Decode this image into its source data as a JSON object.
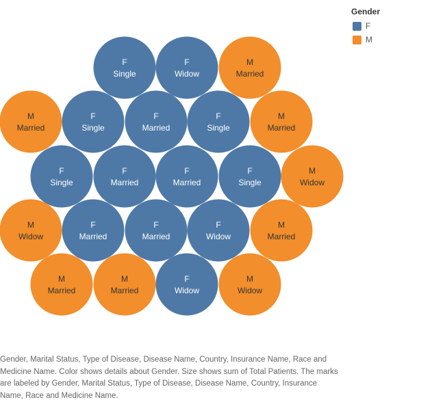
{
  "legend": {
    "title": "Gender",
    "items": [
      {
        "label": "F",
        "color": "#4E79A7"
      },
      {
        "label": "M",
        "color": "#F28E2B"
      }
    ]
  },
  "caption": "Gender, Marital Status, Type of Disease, Disease Name, Country, Insurance Name, Race and Medicine Name.  Color shows details about Gender.  Size shows sum of Total Patients.  The marks are labeled by Gender, Marital Status, Type of Disease, Disease Name, Country, Insurance Name, Race and Medicine Name.",
  "chart_data": {
    "type": "packed-bubble",
    "title": "",
    "color_field": "Gender",
    "size_field": "sum of Total Patients",
    "bubbles": [
      {
        "gender": "F",
        "status": "Single"
      },
      {
        "gender": "F",
        "status": "Widow"
      },
      {
        "gender": "M",
        "status": "Married"
      },
      {
        "gender": "M",
        "status": "Married"
      },
      {
        "gender": "F",
        "status": "Single"
      },
      {
        "gender": "F",
        "status": "Married"
      },
      {
        "gender": "F",
        "status": "Single"
      },
      {
        "gender": "M",
        "status": "Married"
      },
      {
        "gender": "F",
        "status": "Single"
      },
      {
        "gender": "F",
        "status": "Married"
      },
      {
        "gender": "F",
        "status": "Married"
      },
      {
        "gender": "F",
        "status": "Single"
      },
      {
        "gender": "M",
        "status": "Widow"
      },
      {
        "gender": "M",
        "status": "Widow"
      },
      {
        "gender": "F",
        "status": "Married"
      },
      {
        "gender": "F",
        "status": "Married"
      },
      {
        "gender": "F",
        "status": "Widow"
      },
      {
        "gender": "M",
        "status": "Married"
      },
      {
        "gender": "M",
        "status": "Married"
      },
      {
        "gender": "M",
        "status": "Married"
      },
      {
        "gender": "F",
        "status": "Widow"
      },
      {
        "gender": "M",
        "status": "Widow"
      }
    ]
  }
}
